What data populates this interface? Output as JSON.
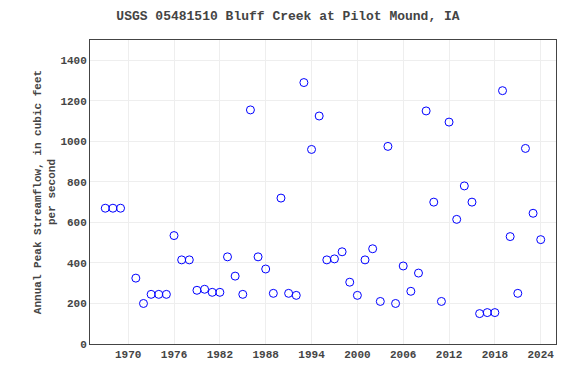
{
  "chart_data": {
    "type": "scatter",
    "title": "USGS 05481510 Bluff Creek at Pilot Mound, IA",
    "ylabel": "Annual Peak Streamflow, in cubic feet\nper second",
    "x": [
      1967,
      1968,
      1969,
      1971,
      1972,
      1973,
      1974,
      1975,
      1976,
      1977,
      1978,
      1979,
      1980,
      1981,
      1982,
      1983,
      1984,
      1985,
      1986,
      1987,
      1988,
      1989,
      1990,
      1991,
      1992,
      1993,
      1994,
      1995,
      1996,
      1997,
      1998,
      1999,
      2000,
      2001,
      2002,
      2003,
      2004,
      2005,
      2006,
      2007,
      2008,
      2009,
      2010,
      2011,
      2012,
      2013,
      2014,
      2015,
      2016,
      2017,
      2018,
      2019,
      2020,
      2021,
      2022,
      2023,
      2024
    ],
    "values": [
      670,
      670,
      670,
      325,
      200,
      245,
      245,
      245,
      535,
      415,
      415,
      265,
      270,
      255,
      255,
      430,
      335,
      245,
      1155,
      430,
      370,
      250,
      720,
      250,
      240,
      1290,
      960,
      1125,
      415,
      420,
      455,
      305,
      240,
      415,
      470,
      210,
      975,
      200,
      385,
      260,
      350,
      1150,
      700,
      210,
      1095,
      615,
      780,
      700,
      150,
      155,
      155,
      1250,
      530,
      250,
      965,
      645,
      515
    ],
    "xlim": [
      1965,
      2026
    ],
    "ylim": [
      0,
      1500
    ],
    "xticks": [
      1970,
      1976,
      1982,
      1988,
      1994,
      2000,
      2006,
      2012,
      2018,
      2024
    ],
    "yticks": [
      0,
      200,
      400,
      600,
      800,
      1000,
      1200,
      1400
    ],
    "color": "blue",
    "marker": "circle-open",
    "grid": true
  }
}
